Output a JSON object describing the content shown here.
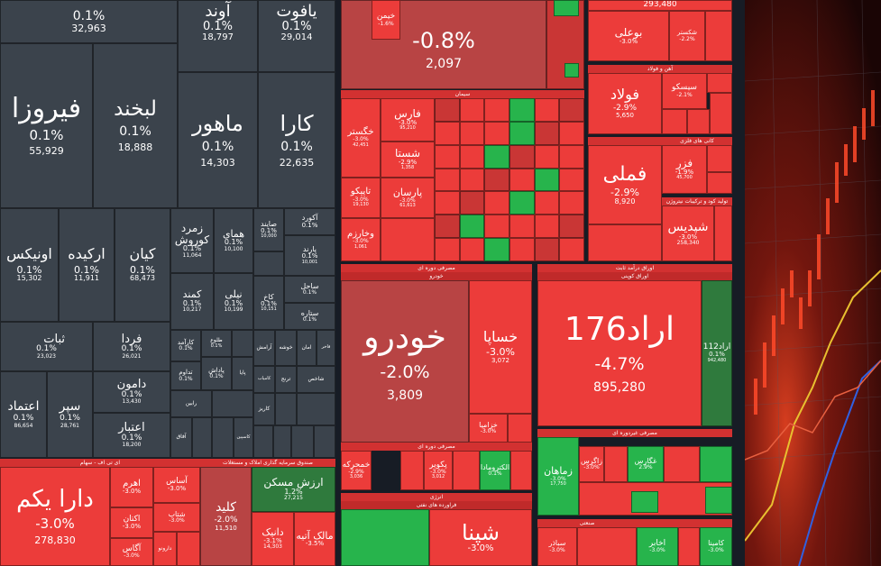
{
  "top_tiles": {
    "t0": {
      "pct": "0.1%",
      "val": "32,963"
    },
    "t1": {
      "name": "آوند",
      "pct": "0.1%",
      "val": "18,797"
    },
    "t2": {
      "name": "یافوت",
      "pct": "0.1%",
      "val": "29,014"
    },
    "firouza": {
      "name": "فیروزا",
      "pct": "0.1%",
      "val": "55,929"
    },
    "labkhand": {
      "name": "لبخند",
      "pct": "0.1%",
      "val": "18,888"
    },
    "mahour": {
      "name": "ماهور",
      "pct": "0.1%",
      "val": "14,303"
    },
    "kara": {
      "name": "کارا",
      "pct": "0.1%",
      "val": "22,635"
    },
    "onix": {
      "name": "اونیکس",
      "pct": "0.1%",
      "val": "15,302"
    },
    "arkide": {
      "name": "ارکیده",
      "pct": "0.1%",
      "val": "11,911"
    },
    "kian": {
      "name": "کیان",
      "pct": "0.1%",
      "val": "68,473"
    },
    "zomorod": {
      "name": "زمرد",
      "pct": "0.1%",
      "val": ""
    },
    "kourosh": {
      "name": "کوروش",
      "pct": "0.1%",
      "val": "11,064"
    },
    "homay": {
      "name": "همای",
      "pct": "0.1%",
      "val": "10,100"
    },
    "sayand": {
      "name": "صایند",
      "pct": "0.1%",
      "val": "10,000"
    },
    "akord": {
      "name": "آکورد",
      "pct": "0.1%",
      "val": ""
    },
    "parand": {
      "name": "پارند",
      "pct": "0.1%",
      "val": "10,001"
    },
    "sabat": {
      "name": "ثبات",
      "pct": "0.1%",
      "val": "23,023"
    },
    "farda": {
      "name": "فردا",
      "pct": "0.1%",
      "val": "26,021"
    },
    "kamand": {
      "name": "کمند",
      "pct": "0.1%",
      "val": "10,217"
    },
    "nili": {
      "name": "نیلی",
      "pct": "0.1%",
      "val": "10,199"
    },
    "kakh": {
      "name": "کاخ",
      "pct": "0.1%",
      "val": "10,151"
    },
    "sahel": {
      "name": "ساحل",
      "pct": "0.1%",
      "val": "10,000"
    },
    "setare": {
      "name": "ستاره",
      "pct": "0.1%",
      "val": ""
    },
    "damoun": {
      "name": "دامون",
      "pct": "0.1%",
      "val": "13,430"
    },
    "etemad": {
      "name": "اعتماد",
      "pct": "0.1%",
      "val": "86,654"
    },
    "separ": {
      "name": "سپر",
      "pct": "0.1%",
      "val": "28,761"
    },
    "etebar": {
      "name": "اعتبار",
      "pct": "0.1%",
      "val": "18,200"
    },
    "karamad": {
      "name": "کارآمد",
      "pct": "0.1%",
      "val": ""
    },
    "tolou": {
      "name": "طلوع",
      "pct": "0.1%",
      "val": ""
    },
    "tadavom": {
      "name": "تداوم",
      "pct": "0.1%",
      "val": ""
    },
    "padash": {
      "name": "پاداش",
      "pct": "0.1%",
      "val": ""
    },
    "pana": {
      "name": "پایا",
      "pct": "0.1%",
      "val": ""
    },
    "aramesh": {
      "name": "آرامش",
      "pct": "0.1%",
      "val": ""
    },
    "khoshe": {
      "name": "خوشه",
      "pct": "0.1%",
      "val": ""
    },
    "aman": {
      "name": "امان",
      "pct": "0.1%",
      "val": ""
    },
    "mahdi": {
      "name": "فاخر",
      "pct": "0.1%",
      "val": ""
    },
    "kamyab": {
      "name": "کامیاب",
      "pct": "0.1%",
      "val": ""
    },
    "taj": {
      "name": "ترنج",
      "pct": "0.1%",
      "val": ""
    },
    "sahm": {
      "name": "شاخص",
      "pct": "0.1%",
      "val": ""
    },
    "afagh": {
      "name": "آفاق",
      "pct": "0.1%",
      "val": ""
    },
    "kaspian": {
      "name": "کاسپین",
      "pct": "0.1%",
      "val": ""
    },
    "kariz": {
      "name": "کاریز",
      "pct": "0.1%",
      "val": ""
    },
    "nahal": {
      "name": "رابین",
      "pct": "0.1%",
      "val": ""
    }
  },
  "etf_sector": {
    "label": "ای تی اف - سهام",
    "dara": {
      "name": "دارا یکم",
      "pct": "-3.0%",
      "val": "278,830"
    },
    "ahrom": {
      "name": "اهرم",
      "pct": "-3.0%",
      "val": ""
    },
    "asas": {
      "name": "آساس",
      "pct": "-3.0%",
      "val": ""
    },
    "aktan": {
      "name": "اکتان",
      "pct": "-3.0%",
      "val": ""
    },
    "shetab": {
      "name": "شتاب",
      "pct": "-3.0%",
      "val": ""
    },
    "agas": {
      "name": "آگاس",
      "pct": "-3.0%",
      "val": ""
    },
    "daroo": {
      "name": "دارونو",
      "pct": "-3.0%",
      "val": ""
    }
  },
  "realestate_sector": {
    "label": "صندوق سرمایه گذاری املاک و مستغلات",
    "arzesh": {
      "name": "ارزش مسکن",
      "pct": "1.2%",
      "val": "27,215"
    },
    "kelid": {
      "name": "کلید",
      "pct": "-2.0%",
      "val": "11,510"
    },
    "danik": {
      "name": "دانیک",
      "pct": "-3.1%",
      "val": "14,303"
    },
    "maalek": {
      "name": "مالک آتیه",
      "pct": "-3.5%",
      "val": ""
    }
  },
  "top_center": {
    "big": {
      "pct": "-0.8%",
      "val": "2,097"
    },
    "bank_val": "293,480",
    "boali": {
      "name": "بوعلی",
      "pct": "-3.0%"
    },
    "shekar": {
      "name": "شکستر",
      "pct": "-2.2%"
    }
  },
  "cement_sector": {
    "label": "سیمان",
    "fars": {
      "name": "فارس",
      "pct": "-3.0%",
      "val": "95,210"
    },
    "khegastar": {
      "name": "خگستر",
      "pct": "-3.0%",
      "val": "42,451"
    },
    "shasta": {
      "name": "شستا",
      "pct": "-2.9%",
      "val": "1,358"
    },
    "tapiko": {
      "name": "تاپیکو",
      "pct": "-3.0%",
      "val": "19,130"
    },
    "parsan": {
      "name": "پارسان",
      "pct": "-3.0%",
      "val": "61,613"
    },
    "vakharazm": {
      "name": "وخارزم",
      "pct": "-3.0%",
      "val": "1,061"
    }
  },
  "metals_sector": {
    "label": "آهن و فولاد",
    "foulad": {
      "name": "فولاد",
      "pct": "-2.9%",
      "val": "5,650"
    },
    "sabasko": {
      "name": "سیسکو",
      "pct": "-2.1%",
      "val": ""
    },
    "fameli": {
      "name": "فملی",
      "pct": "-2.9%",
      "val": "8,920"
    },
    "fazar": {
      "name": "فزر",
      "pct": "-1.9%",
      "val": "45,700"
    },
    "shadpes": {
      "name": "شپدیس",
      "pct": "-3.0%",
      "val": "258,340"
    },
    "label2": "کانی های فلزی",
    "label3": "تولید کود و ترکیبات نیتروژن"
  },
  "auto_sector": {
    "label": "مصرفی دوره ای",
    "sub": "خودرو",
    "khodro": {
      "name": "خودرو",
      "pct": "-2.0%",
      "val": "3,809"
    },
    "khsapa": {
      "name": "خساپا",
      "pct": "-3.0%",
      "val": "3,072"
    },
    "khazamia": {
      "name": "خزامیا",
      "pct": "-3.0%",
      "val": ""
    }
  },
  "bond_sector": {
    "label": "اوراق درآمد ثابت",
    "sub": "اوراق کوپنی",
    "arad176": {
      "name": "اراد176",
      "pct": "-4.7%",
      "val": "895,280"
    },
    "arad112": {
      "name": "اراد112",
      "pct": "0.1%",
      "val": "942,480"
    }
  },
  "lower_mid": {
    "label": "مصرفی دوره ای",
    "khabar": {
      "name": "خمحرکه",
      "pct": "-2.9%",
      "val": "3,036"
    },
    "kheiam": {
      "name": "خیمن",
      "pct": "-1.6%",
      "val": ""
    },
    "pakuir": {
      "name": "پکویر",
      "pct": "-3.0%",
      "val": "3,012"
    },
    "alkotron": {
      "name": "الکترومادا",
      "pct": "0.1%",
      "val": ""
    },
    "shapna": {
      "name": "شپنا",
      "pct": "-3.0%",
      "val": ""
    },
    "label2": "انرژی",
    "label3": "فراورده های نفتی"
  },
  "right_mid": {
    "label": "مصرفی غیردوره ای",
    "zamahan": {
      "name": "زماهان",
      "pct": "-3.0%",
      "val": "17,750"
    },
    "zagros": {
      "name": "زاگرس",
      "pct": "-3.0%",
      "val": ""
    },
    "ghars": {
      "name": "غگارس",
      "pct": "2.9%",
      "val": ""
    },
    "label2": "صنعتی",
    "sabader": {
      "name": "سباذر",
      "pct": "-3.0%",
      "val": ""
    },
    "akhaber": {
      "name": "اخابر",
      "pct": "-3.0%",
      "val": ""
    },
    "kamina": {
      "name": "کامینا",
      "pct": "-3.0%",
      "val": ""
    }
  },
  "colors": {
    "gray": "#3b434c",
    "red": "#ec3c3a",
    "dark_red": "#c93635",
    "green": "#27b44c",
    "bg": "#171c25"
  }
}
